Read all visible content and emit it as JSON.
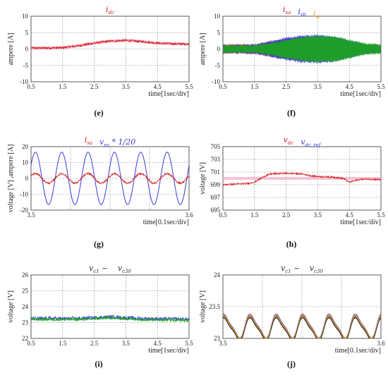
{
  "colors": {
    "red": "#d42020",
    "blue": "#3a3ad8",
    "green": "#1aa81a",
    "orange": "#e8a020",
    "pink": "#f2a8c8",
    "dark": "#333333"
  },
  "chart_data": [
    {
      "id": "e",
      "panel_label": "(e)",
      "type": "line",
      "title_parts": [
        {
          "text": "i",
          "sub": "dc",
          "color": "red"
        }
      ],
      "xlabel": "time[1sec/div]",
      "ylabel": "ampere [A]",
      "xlim": [
        0.5,
        5.5
      ],
      "ylim": [
        -10,
        10
      ],
      "xticks": [
        "0.5",
        "1.5",
        "2.5",
        "3.5",
        "4.5",
        "5.5"
      ],
      "yticks": [
        "10",
        "5",
        "0",
        "-5",
        "-10"
      ],
      "grid": true,
      "series": [
        {
          "color": "pink",
          "x": [
            0.5,
            1.0,
            1.5,
            2.0,
            2.5,
            3.0,
            3.5,
            4.0,
            4.5,
            5.0,
            5.5
          ],
          "y": [
            0.3,
            0.3,
            0.4,
            1.0,
            1.8,
            2.4,
            2.6,
            2.3,
            1.8,
            1.6,
            1.5
          ]
        },
        {
          "color": "red",
          "noise": 0.35,
          "x": [
            0.5,
            1.0,
            1.5,
            2.0,
            2.5,
            3.0,
            3.5,
            4.0,
            4.5,
            5.0,
            5.5
          ],
          "y": [
            0.3,
            0.3,
            0.4,
            1.0,
            1.8,
            2.4,
            2.6,
            2.3,
            1.8,
            1.6,
            1.5
          ]
        }
      ]
    },
    {
      "id": "f",
      "panel_label": "(f)",
      "type": "line",
      "title_parts": [
        {
          "text": "i",
          "sub": "sa",
          "color": "red"
        },
        {
          "text": "i",
          "sub": "sb",
          "color": "blue"
        },
        {
          "text": "i",
          "sub": "sc",
          "color": "orange"
        }
      ],
      "xlabel": "time[1sec/div]",
      "ylabel": "ampere [A]",
      "xlim": [
        0.5,
        5.5
      ],
      "ylim": [
        -10,
        10
      ],
      "xticks": [
        "0.5",
        "1.5",
        "2.5",
        "3.5",
        "4.5",
        "5.5"
      ],
      "yticks": [
        "10",
        "5",
        "0",
        "-5",
        "-10"
      ],
      "grid": true,
      "envelope": {
        "x": [
          0.5,
          1.0,
          1.5,
          2.0,
          2.5,
          3.0,
          3.5,
          4.0,
          4.5,
          5.0,
          5.5
        ],
        "amp": [
          1.3,
          1.3,
          1.4,
          2.3,
          3.3,
          4.0,
          4.2,
          3.9,
          2.8,
          1.6,
          1.3
        ]
      },
      "series": [
        {
          "color": "red"
        },
        {
          "color": "blue"
        },
        {
          "color": "green"
        }
      ]
    },
    {
      "id": "g",
      "panel_label": "(g)",
      "type": "line",
      "title_parts": [
        {
          "text": "i",
          "sub": "sa",
          "color": "red"
        },
        {
          "text": "v",
          "sub": "sa",
          "suffix": " * 1/20",
          "color": "blue"
        }
      ],
      "xlabel": "time[0.1sec/div]",
      "ylabel": "voltage [V] ,ampere [A]",
      "xlim": [
        3.5,
        3.6
      ],
      "ylim": [
        -20,
        20
      ],
      "xticks": [
        "3.5",
        "",
        "",
        "",
        "3.6"
      ],
      "yticks": [
        "20",
        "10",
        "0",
        "-10",
        "-20"
      ],
      "grid": true,
      "sine": {
        "cycles": 6,
        "phase_deg": 30
      },
      "series": [
        {
          "color": "blue",
          "amp": 16.5
        },
        {
          "color": "red",
          "amp": 3.0,
          "noise": 0.6
        }
      ]
    },
    {
      "id": "h",
      "panel_label": "(h)",
      "type": "line",
      "title_parts": [
        {
          "text": "v",
          "sub": "dc",
          "color": "red"
        },
        {
          "text": "v",
          "sub": "dc_ref",
          "color": "blue"
        }
      ],
      "xlabel": "time[1sec/div]",
      "ylabel": "voltage [V]",
      "xlim": [
        0.5,
        5.5
      ],
      "ylim": [
        695,
        705
      ],
      "xticks": [
        "0.5",
        "1.5",
        "2.5",
        "3.5",
        "4.5",
        "5.5"
      ],
      "yticks": [
        "705",
        "703",
        "701",
        "699",
        "697",
        "695"
      ],
      "grid": true,
      "series": [
        {
          "color": "pink",
          "x": [
            0.5,
            5.5
          ],
          "y": [
            700,
            700
          ]
        },
        {
          "color": "red",
          "noise": 0.12,
          "x": [
            0.5,
            1.3,
            1.5,
            1.8,
            2.0,
            2.5,
            3.0,
            3.3,
            3.5,
            4.0,
            4.3,
            4.5,
            4.8,
            5.0,
            5.5
          ],
          "y": [
            699.0,
            699.2,
            699.4,
            700.3,
            700.7,
            700.8,
            700.7,
            700.4,
            700.3,
            700.2,
            700.0,
            699.4,
            699.8,
            699.9,
            699.8
          ]
        }
      ]
    },
    {
      "id": "i",
      "panel_label": "(i)",
      "type": "line",
      "title_parts": [
        {
          "text": "v",
          "sub": "c1",
          "suffix": " ~ ",
          "color": "dark"
        },
        {
          "text": "v",
          "sub": "c30",
          "color": "dark"
        }
      ],
      "xlabel": "time[1sec/div]",
      "ylabel": "voltage [V]",
      "xlim": [
        0.5,
        5.5
      ],
      "ylim": [
        22,
        26
      ],
      "xticks": [
        "0.5",
        "1.5",
        "2.5",
        "3.5",
        "4.5",
        "5.5"
      ],
      "yticks": [
        "26",
        "25",
        "24",
        "23",
        "22"
      ],
      "grid": true,
      "series": [
        {
          "color": "blue",
          "noise": 0.12,
          "x": [
            0.5,
            2.0,
            2.5,
            3.0,
            3.5,
            4.0,
            5.5
          ],
          "y": [
            23.25,
            23.25,
            23.3,
            23.35,
            23.3,
            23.25,
            23.2
          ]
        },
        {
          "color": "green",
          "noise": 0.1,
          "x": [
            0.5,
            2.0,
            2.5,
            3.0,
            3.5,
            4.0,
            5.5
          ],
          "y": [
            23.2,
            23.2,
            23.25,
            23.3,
            23.25,
            23.2,
            23.15
          ]
        }
      ]
    },
    {
      "id": "j",
      "panel_label": "(j)",
      "type": "line",
      "title_parts": [
        {
          "text": "v",
          "sub": "c1",
          "suffix": " ~ ",
          "color": "dark"
        },
        {
          "text": "v",
          "sub": "c30",
          "color": "dark"
        }
      ],
      "xlabel": "time[0.1sec/div]",
      "ylabel": "voltage [V]",
      "xlim": [
        3.5,
        3.6
      ],
      "ylim": [
        23,
        24
      ],
      "xticks": [
        "3.5",
        "",
        "",
        "",
        "3.6"
      ],
      "yticks": [
        "24",
        "23.5",
        "23"
      ],
      "grid": true,
      "sine": {
        "cycles": 6,
        "phase_deg": 60
      },
      "series": [
        {
          "color": "blue",
          "base": 23.18,
          "amp": 0.17,
          "stagger": 0.02
        },
        {
          "color": "red",
          "base": 23.17,
          "amp": 0.17,
          "stagger": 0.01
        },
        {
          "color": "green",
          "base": 23.16,
          "amp": 0.18,
          "stagger": 0.0
        },
        {
          "color": "orange",
          "base": 23.17,
          "amp": 0.16,
          "stagger": 0.015
        },
        {
          "color": "dark",
          "base": 23.15,
          "amp": 0.16,
          "stagger": 0.005
        }
      ]
    }
  ]
}
